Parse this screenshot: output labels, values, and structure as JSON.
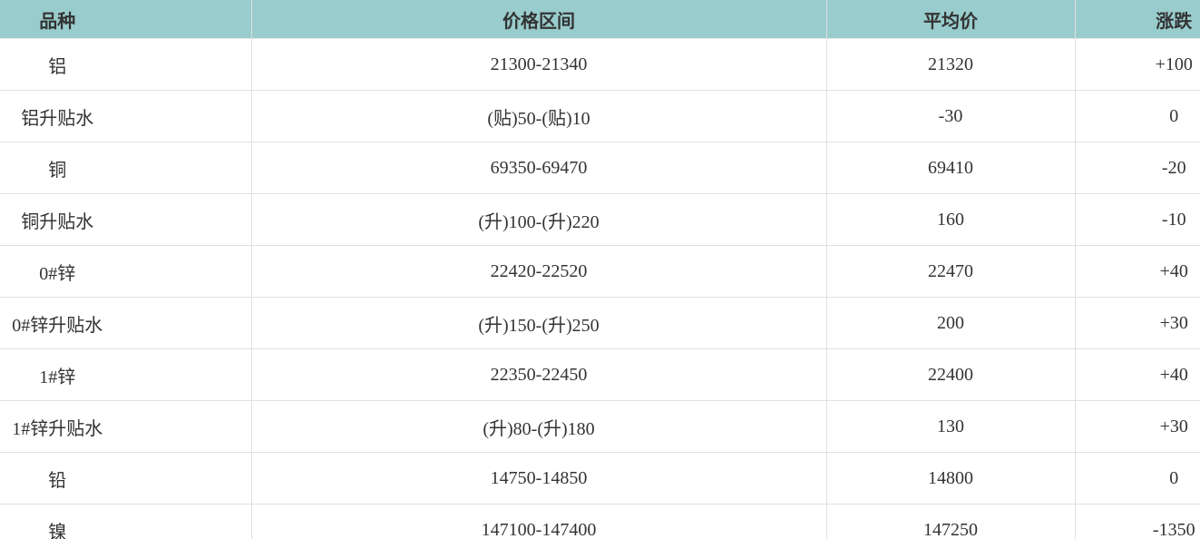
{
  "colors": {
    "header_background": "#99cccc",
    "text": "#333333",
    "grid_line": "#e0e0e0"
  },
  "chart_data": {
    "type": "table",
    "columns": [
      "品种",
      "价格区间",
      "平均价",
      "涨跌"
    ],
    "rows": [
      [
        "铝",
        "21300-21340",
        "21320",
        "+100"
      ],
      [
        "铝升贴水",
        "(贴)50-(贴)10",
        "-30",
        "0"
      ],
      [
        "铜",
        "69350-69470",
        "69410",
        "-20"
      ],
      [
        "铜升贴水",
        "(升)100-(升)220",
        "160",
        "-10"
      ],
      [
        "0#锌",
        "22420-22520",
        "22470",
        "+40"
      ],
      [
        "0#锌升贴水",
        "(升)150-(升)250",
        "200",
        "+30"
      ],
      [
        "1#锌",
        "22350-22450",
        "22400",
        "+40"
      ],
      [
        "1#锌升贴水",
        "(升)80-(升)180",
        "130",
        "+30"
      ],
      [
        "铅",
        "14750-14850",
        "14800",
        "0"
      ],
      [
        "镍",
        "147100-147400",
        "147250",
        "-1350"
      ]
    ]
  }
}
